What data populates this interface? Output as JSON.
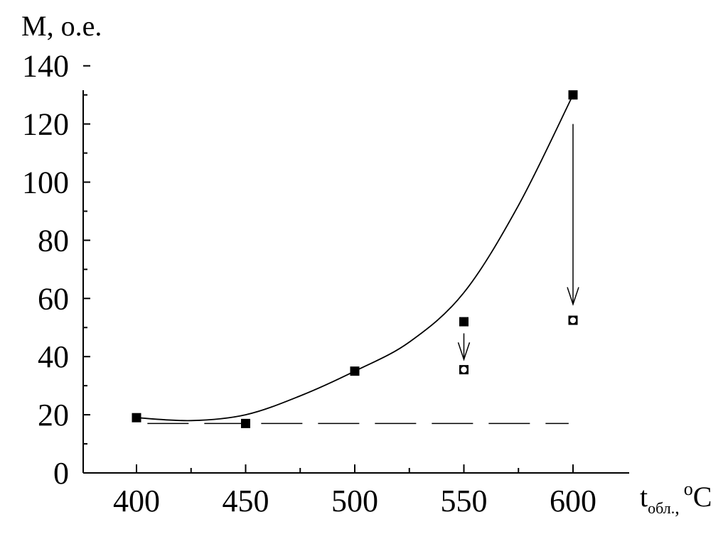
{
  "chart_data": {
    "type": "scatter",
    "ylabel": "M, о.е.",
    "xlabel": {
      "main": "t",
      "subscript": "обл.",
      "unit_sep": ",",
      "unit_degree": "o",
      "unit": "C"
    },
    "xlim": [
      380,
      630
    ],
    "ylim": [
      0,
      140
    ],
    "x_ticks": [
      400,
      450,
      500,
      550,
      600
    ],
    "x_tick_labels": [
      "400",
      "450",
      "500",
      "550",
      "600"
    ],
    "x_minor_ticks": [
      425,
      475,
      525,
      575
    ],
    "y_ticks": [
      0,
      20,
      40,
      60,
      80,
      100,
      120,
      140
    ],
    "y_tick_labels": [
      "0",
      "20",
      "40",
      "60",
      "80",
      "100",
      "120",
      "140"
    ],
    "y_minor_ticks": [
      10,
      30,
      50,
      70,
      90,
      110,
      130
    ],
    "grid": false,
    "series": [
      {
        "marker": "filled-square",
        "x": [
          400,
          450,
          500,
          550,
          600
        ],
        "y": [
          19,
          17,
          35,
          52,
          130
        ]
      },
      {
        "marker": "open-circle",
        "x": [
          550,
          600
        ],
        "y": [
          35.5,
          52.5
        ]
      }
    ],
    "fit_curve": {
      "style": "solid",
      "points": [
        [
          400,
          19
        ],
        [
          425,
          18
        ],
        [
          450,
          20
        ],
        [
          475,
          26.5
        ],
        [
          500,
          35
        ],
        [
          525,
          45
        ],
        [
          550,
          62
        ],
        [
          575,
          92
        ],
        [
          600,
          130
        ]
      ]
    },
    "baseline": {
      "style": "dashed",
      "y": 17,
      "x_from": 405,
      "x_to": 598
    },
    "arrows": [
      {
        "x": 550,
        "y_from": 48,
        "y_to": 39
      },
      {
        "x": 600,
        "y_from": 120,
        "y_to": 58
      }
    ],
    "colors": {
      "ink": "#000000",
      "background": "#ffffff"
    }
  }
}
